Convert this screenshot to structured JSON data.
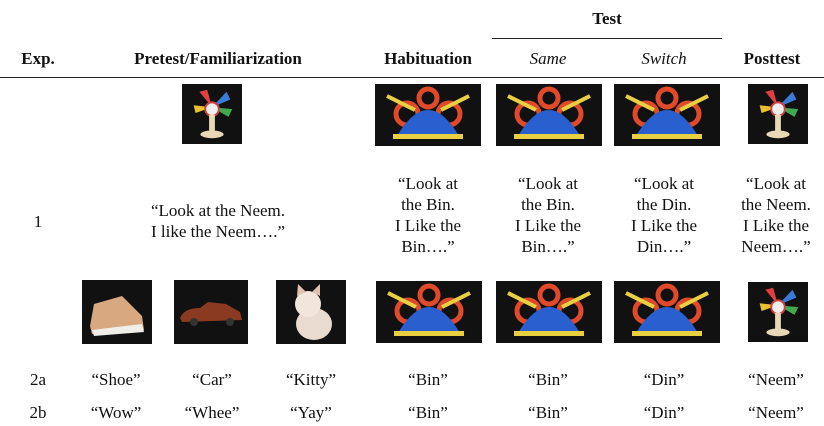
{
  "header": {
    "group": "Test",
    "columns": [
      "Exp.",
      "Pretest/Familiarization",
      "Habituation",
      "Same",
      "Switch",
      "Posttest"
    ]
  },
  "rows": [
    {
      "exp": "1",
      "pretest": [
        "“Look at the Neem.",
        "I like the Neem….”"
      ],
      "habituation": [
        "“Look at",
        "the Bin.",
        "I Like the",
        "Bin….”"
      ],
      "same": [
        "“Look at",
        "the Bin.",
        "I Like the",
        "Bin….”"
      ],
      "switch": [
        "“Look at",
        "the Din.",
        "I Like the",
        "Din….”"
      ],
      "posttest": [
        "“Look at",
        "the Neem.",
        "I Like the",
        "Neem….”"
      ]
    },
    {
      "exp": "2a",
      "pretest": [
        "“Shoe”",
        "“Car”",
        "“Kitty”"
      ],
      "habituation": "“Bin”",
      "same": "“Bin”",
      "switch": "“Din”",
      "posttest": "“Neem”"
    },
    {
      "exp": "2b",
      "pretest": [
        "“Wow”",
        "“Whee”",
        "“Yay”"
      ],
      "habituation": "“Bin”",
      "same": "“Bin”",
      "switch": "“Din”",
      "posttest": "“Neem”"
    }
  ]
}
